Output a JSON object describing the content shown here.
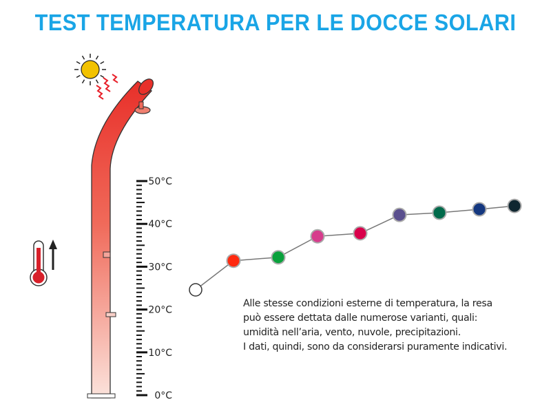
{
  "title": "TEST TEMPERATURA PER LE DOCCE SOLARI",
  "note_lines": [
    "Alle stesse condizioni esterne di temperatura, la resa",
    "può essere dettata dalle numerose varianti, quali:",
    "umidità nell’aria, vento, nuvole, precipitazioni.",
    "I dati, quindi, sono da considerarsi puramente indicativi."
  ],
  "icons": [
    "sun-icon",
    "heat-waves-icon",
    "thermometer-icon",
    "arrow-up-icon",
    "solar-shower-illustration"
  ],
  "chart_data": {
    "type": "line",
    "ylim": [
      0,
      50
    ],
    "yticks": [
      "0°C",
      "10°C",
      "20°C",
      "30°C",
      "40°C",
      "50°C"
    ],
    "grid": false,
    "values": [
      24.6,
      31.4,
      32.2,
      37.1,
      37.8,
      42.1,
      42.6,
      43.4,
      44.2
    ],
    "point_colors": [
      "#ffffff",
      "#ff2a10",
      "#0aa13c",
      "#d63c8c",
      "#d9004b",
      "#5a4f8e",
      "#006a4b",
      "#14377f",
      "#0f2630"
    ],
    "line_color": "#777777"
  }
}
